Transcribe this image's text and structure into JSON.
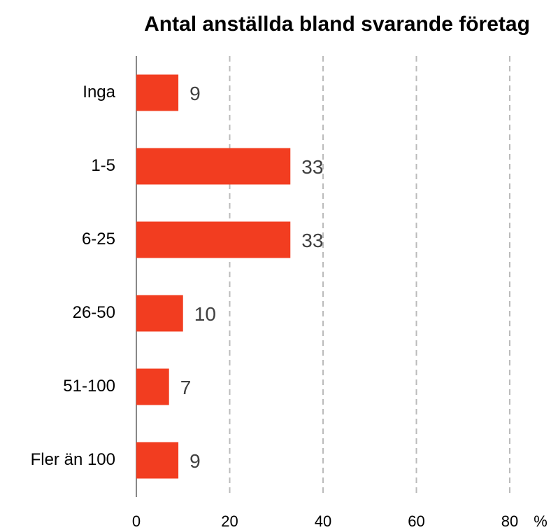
{
  "chart_data": {
    "type": "barh",
    "title": "Antal anställda bland svarande företag",
    "categories": [
      "Inga",
      "1-5",
      "6-25",
      "26-50",
      "51-100",
      "Fler än 100"
    ],
    "values": [
      9,
      33,
      33,
      10,
      7,
      9
    ],
    "color": "#f23d20",
    "xlim": [
      0,
      80
    ],
    "xticks": [
      0,
      20,
      40,
      60,
      80
    ],
    "xlabel": "%",
    "grid": true
  }
}
